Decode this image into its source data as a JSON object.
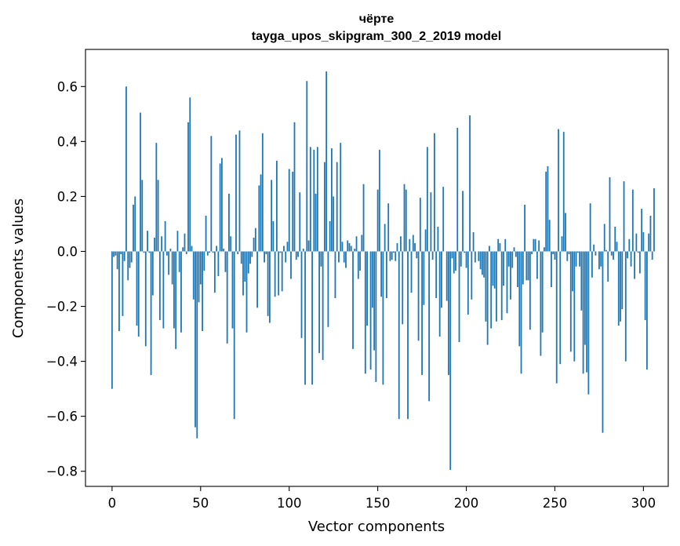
{
  "chart_data": {
    "type": "bar",
    "title": "чёрте",
    "subtitle": "tayga_upos_skipgram_300_2_2019 model",
    "xlabel": "Vector components",
    "ylabel": "Components values",
    "xlim": [
      -15,
      314
    ],
    "ylim": [
      -0.855,
      0.735
    ],
    "xticks": [
      0,
      50,
      100,
      150,
      200,
      250,
      300
    ],
    "yticks": [
      -0.8,
      -0.6,
      -0.4,
      -0.2,
      0.0,
      0.2,
      0.4,
      0.6
    ],
    "ytick_labels": [
      "−0.8",
      "−0.6",
      "−0.4",
      "−0.2",
      "0.0",
      "0.2",
      "0.4",
      "0.6"
    ],
    "bar_color": "#1f77b4",
    "values": [
      -0.5,
      -0.02,
      -0.015,
      -0.065,
      -0.29,
      -0.01,
      -0.235,
      -0.035,
      0.6,
      -0.105,
      -0.06,
      -0.04,
      0.17,
      0.2,
      -0.27,
      -0.31,
      0.505,
      0.26,
      -0.005,
      -0.345,
      0.075,
      -0.005,
      -0.45,
      -0.16,
      0.05,
      0.395,
      0.26,
      -0.25,
      0.055,
      -0.28,
      0.11,
      -0.015,
      -0.085,
      0.01,
      -0.12,
      -0.28,
      -0.355,
      0.075,
      -0.075,
      -0.295,
      0.015,
      0.065,
      -0.01,
      0.47,
      0.56,
      0.02,
      -0.175,
      -0.64,
      -0.68,
      -0.185,
      -0.12,
      -0.29,
      -0.07,
      0.13,
      -0.015,
      -0.005,
      0.42,
      -0.005,
      -0.15,
      0.02,
      -0.09,
      0.32,
      0.34,
      0.01,
      -0.075,
      -0.335,
      0.21,
      0.055,
      -0.28,
      -0.61,
      0.425,
      -0.01,
      0.44,
      -0.045,
      -0.16,
      -0.11,
      -0.295,
      -0.08,
      -0.045,
      -0.02,
      0.05,
      0.085,
      -0.205,
      0.24,
      0.28,
      0.43,
      -0.04,
      -0.01,
      -0.235,
      -0.26,
      0.26,
      0.11,
      -0.165,
      0.33,
      -0.16,
      -0.005,
      -0.145,
      0.02,
      -0.04,
      0.035,
      0.3,
      -0.1,
      0.29,
      0.47,
      -0.03,
      -0.02,
      0.215,
      -0.315,
      0.01,
      -0.485,
      0.62,
      0.04,
      0.38,
      -0.485,
      0.37,
      0.21,
      0.38,
      -0.37,
      -0.055,
      -0.395,
      0.325,
      0.655,
      -0.275,
      0.11,
      0.375,
      0.2,
      -0.17,
      0.325,
      -0.04,
      0.395,
      0.035,
      -0.04,
      -0.06,
      0.04,
      0.03,
      0.02,
      -0.355,
      0.01,
      0.055,
      -0.1,
      -0.07,
      0.06,
      0.245,
      -0.445,
      -0.27,
      0.0,
      -0.43,
      -0.205,
      -0.36,
      -0.475,
      0.225,
      0.37,
      -0.165,
      -0.485,
      0.1,
      -0.17,
      0.175,
      -0.035,
      -0.03,
      -0.005,
      -0.035,
      0.03,
      -0.61,
      0.055,
      -0.265,
      0.245,
      0.225,
      -0.61,
      0.045,
      -0.15,
      0.06,
      0.03,
      -0.025,
      -0.325,
      0.195,
      -0.45,
      -0.195,
      0.08,
      0.38,
      -0.545,
      0.215,
      -0.03,
      0.43,
      -0.17,
      0.09,
      -0.31,
      -0.205,
      0.235,
      0.0,
      -0.18,
      -0.45,
      -0.795,
      -0.025,
      -0.08,
      -0.07,
      0.45,
      -0.33,
      -0.055,
      0.22,
      -0.005,
      -0.06,
      -0.23,
      0.495,
      -0.175,
      0.07,
      -0.04,
      0.0,
      -0.035,
      -0.065,
      -0.085,
      -0.095,
      -0.255,
      -0.34,
      0.02,
      -0.28,
      -0.125,
      -0.135,
      -0.255,
      0.045,
      0.03,
      -0.25,
      -0.125,
      0.045,
      -0.225,
      -0.055,
      -0.175,
      -0.06,
      0.015,
      -0.02,
      -0.13,
      -0.345,
      -0.445,
      -0.12,
      0.17,
      -0.105,
      -0.105,
      -0.285,
      -0.01,
      0.045,
      0.045,
      -0.1,
      0.04,
      -0.38,
      -0.295,
      0.015,
      0.29,
      0.31,
      0.115,
      -0.13,
      -0.01,
      -0.03,
      -0.48,
      0.445,
      -0.41,
      0.055,
      0.435,
      0.14,
      -0.035,
      -0.01,
      -0.365,
      -0.145,
      -0.4,
      -0.055,
      -0.005,
      -0.055,
      -0.215,
      -0.445,
      -0.34,
      -0.44,
      -0.52,
      0.175,
      -0.095,
      0.025,
      -0.015,
      0.0,
      -0.065,
      -0.055,
      -0.66,
      0.1,
      0.005,
      -0.11,
      0.27,
      -0.015,
      -0.03,
      0.09,
      0.035,
      -0.27,
      -0.255,
      -0.21,
      0.255,
      -0.4,
      -0.025,
      0.045,
      -0.055,
      0.225,
      -0.1,
      0.065,
      -0.005,
      -0.08,
      0.155,
      0.07,
      -0.25,
      -0.43,
      0.065,
      0.13,
      -0.03,
      0.23
    ]
  }
}
